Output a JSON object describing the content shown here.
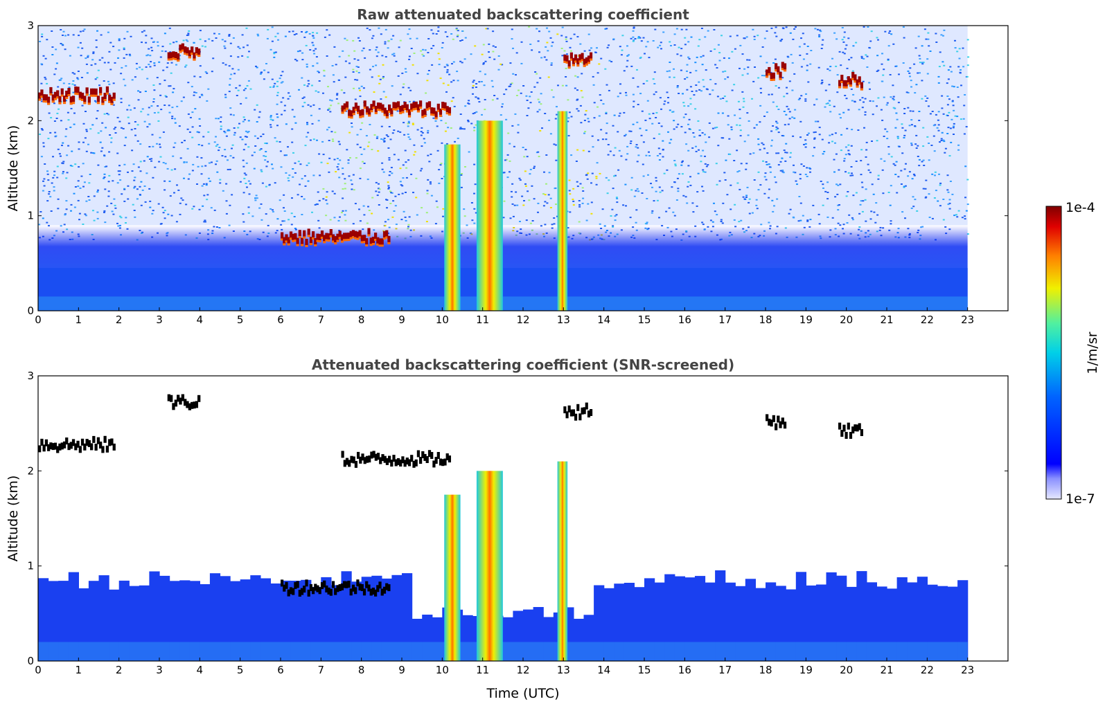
{
  "colors": {
    "background": "#ffffff",
    "boundary_layer_blue": "#1a3cf0",
    "aerosol_blue": "#1e6ef5",
    "cyan": "#18c8e0",
    "yellow": "#ffe600",
    "dark_red": "#8b0000",
    "black": "#000000",
    "title_gray": "#444444"
  },
  "chart_data": [
    {
      "type": "heatmap",
      "title": "Raw attenuated backscattering coefficient",
      "xlabel": "",
      "ylabel": "Altitude (km)",
      "xlim": [
        0,
        24
      ],
      "ylim": [
        0,
        3
      ],
      "xticks": [
        "0",
        "1",
        "2",
        "3",
        "4",
        "5",
        "6",
        "7",
        "8",
        "9",
        "10",
        "11",
        "12",
        "13",
        "14",
        "15",
        "16",
        "17",
        "18",
        "19",
        "20",
        "21",
        "22",
        "23"
      ],
      "yticks": [
        "0",
        "1",
        "2",
        "3"
      ],
      "data_end_time_utc": 23,
      "features": {
        "boundary_layer_top_km": 0.45,
        "noise_onset_km": 0.9,
        "cloud_layers": [
          {
            "t0": 0.0,
            "t1": 1.9,
            "alt_km": 2.25
          },
          {
            "t0": 7.5,
            "t1": 10.2,
            "alt_km": 2.1
          },
          {
            "t0": 6.0,
            "t1": 8.7,
            "alt_km": 0.75
          },
          {
            "t0": 3.2,
            "t1": 4.0,
            "alt_km": 2.7
          },
          {
            "t0": 13.0,
            "t1": 13.7,
            "alt_km": 2.6
          },
          {
            "t0": 18.0,
            "t1": 18.5,
            "alt_km": 2.5
          },
          {
            "t0": 19.8,
            "t1": 20.4,
            "alt_km": 2.4
          }
        ],
        "precipitation_columns": [
          {
            "t0": 10.05,
            "t1": 10.45,
            "top_km": 1.75
          },
          {
            "t0": 10.85,
            "t1": 11.5,
            "top_km": 2.0
          },
          {
            "t0": 12.85,
            "t1": 13.1,
            "top_km": 2.1
          }
        ]
      }
    },
    {
      "type": "heatmap",
      "title": "Attenuated backscattering coefficient (SNR-screened)",
      "xlabel": "Time (UTC)",
      "ylabel": "Altitude (km)",
      "xlim": [
        0,
        24
      ],
      "ylim": [
        0,
        3
      ],
      "xticks": [
        "0",
        "1",
        "2",
        "3",
        "4",
        "5",
        "6",
        "7",
        "8",
        "9",
        "10",
        "11",
        "12",
        "13",
        "14",
        "15",
        "16",
        "17",
        "18",
        "19",
        "20",
        "21",
        "22",
        "23"
      ],
      "yticks": [
        "0",
        "1",
        "2",
        "3"
      ],
      "data_end_time_utc": 23,
      "features": {
        "screened_layer_top_km": 0.85,
        "attenuated_cloud_base": "black"
      }
    }
  ],
  "colorbar": {
    "label": "1/m/sr",
    "min_label": "1e-7",
    "max_label": "1e-4",
    "scale": "log"
  }
}
